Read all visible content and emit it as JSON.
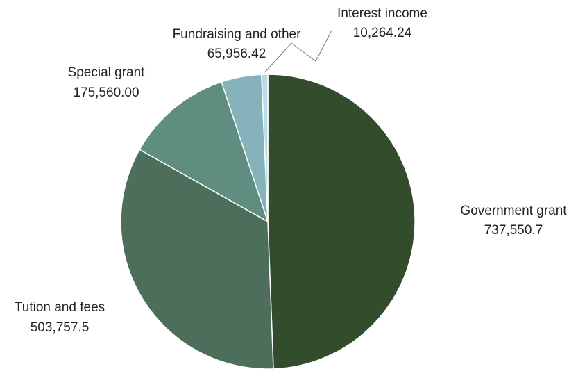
{
  "chart_data": {
    "type": "pie",
    "title": "",
    "labels": [
      "Government grant",
      "Tution and fees",
      "Special grant",
      "Fundraising and other",
      "Interest income"
    ],
    "value_labels": [
      "737,550.7",
      "503,757.5",
      "175,560.00",
      "65,956.42",
      "10,264.24"
    ],
    "values": [
      737550.7,
      503757.5,
      175560.0,
      65956.42,
      10264.24
    ],
    "colors": [
      "#324c2c",
      "#4c6e5b",
      "#5f8e81",
      "#86b3bb",
      "#b8dce6"
    ],
    "start_angle_deg": 0,
    "direction": "clockwise",
    "legend": "none"
  }
}
